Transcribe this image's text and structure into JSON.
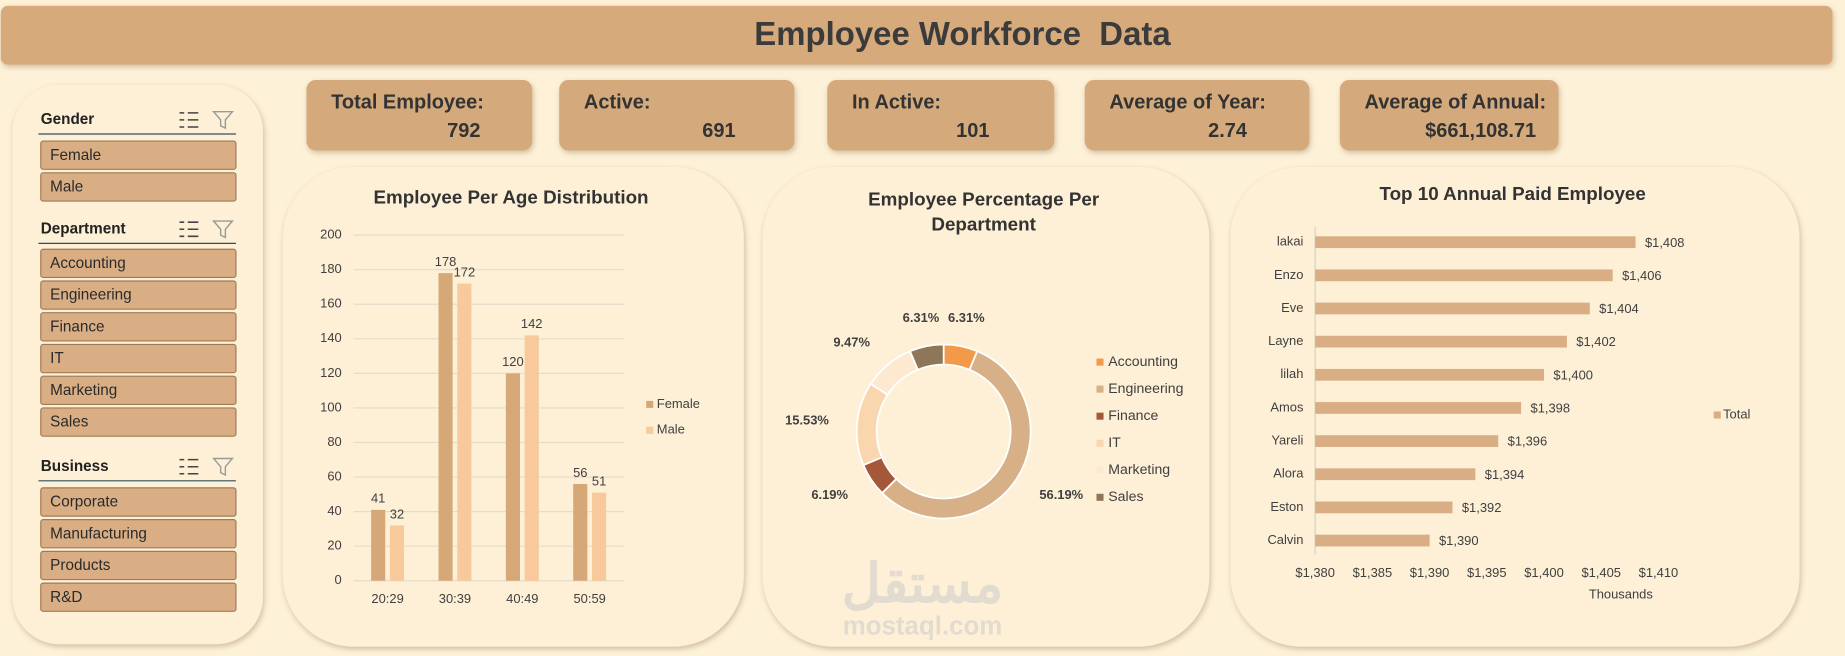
{
  "header": {
    "title": "Employee Workforce  Data"
  },
  "kpis": [
    {
      "label": "Total Employee:",
      "value": "792"
    },
    {
      "label": "Active:",
      "value": "691"
    },
    {
      "label": "In Active:",
      "value": "101"
    },
    {
      "label": "Average of Year:",
      "value": "2.74"
    },
    {
      "label": "Average of Annual:",
      "value": "$661,108.71"
    }
  ],
  "slicers": [
    {
      "title": "Gender",
      "items": [
        "Female",
        "Male"
      ]
    },
    {
      "title": "Department",
      "items": [
        "Accounting",
        "Engineering",
        "Finance",
        "IT",
        "Marketing",
        "Sales"
      ]
    },
    {
      "title": "Business",
      "items": [
        "Corporate",
        "Manufacturing",
        "Products",
        "R&D"
      ]
    }
  ],
  "chart_data": [
    {
      "type": "bar",
      "title": "Employee Per Age Distribution",
      "categories": [
        "20:29",
        "30:39",
        "40:49",
        "50:59"
      ],
      "series": [
        {
          "name": "Female",
          "color": "#d6a878",
          "values": [
            41,
            178,
            120,
            56
          ]
        },
        {
          "name": "Male",
          "color": "#f7c99b",
          "values": [
            32,
            172,
            142,
            51
          ]
        }
      ],
      "ylim": [
        0,
        200
      ],
      "yticks": [
        0,
        20,
        40,
        60,
        80,
        100,
        120,
        140,
        160,
        180,
        200
      ],
      "grid": true,
      "legend": "right"
    },
    {
      "type": "pie",
      "title": "Employee Percentage Per Department",
      "categories": [
        "Accounting",
        "Engineering",
        "Finance",
        "IT",
        "Marketing",
        "Sales"
      ],
      "values": [
        6.31,
        56.19,
        6.19,
        15.53,
        9.47,
        6.31
      ],
      "value_labels": [
        "6.31%",
        "56.19%",
        "6.19%",
        "15.53%",
        "9.47%",
        "6.31%"
      ],
      "colors": [
        "#f39a48",
        "#d8b088",
        "#a5573a",
        "#f9d6ae",
        "#fde9cf",
        "#8e7658"
      ],
      "legend": "right"
    },
    {
      "type": "hbar",
      "title": "Top 10 Annual Paid Employee",
      "xlabel": "Thousands",
      "categories": [
        "lakai",
        "Enzo",
        "Eve",
        "Layne",
        "lilah",
        "Amos",
        "Yareli",
        "Alora",
        "Eston",
        "Calvin"
      ],
      "series": [
        {
          "name": "Total",
          "color": "#d9ae84",
          "values": [
            1408,
            1406,
            1404,
            1402,
            1400,
            1398,
            1396,
            1394,
            1392,
            1390
          ],
          "value_labels": [
            "$1,408",
            "$1,406",
            "$1,404",
            "$1,402",
            "$1,400",
            "$1,398",
            "$1,396",
            "$1,394",
            "$1,392",
            "$1,390"
          ]
        }
      ],
      "xlim": [
        1380,
        1410
      ],
      "xticks": [
        {
          "value": 1380,
          "label": "$1,380"
        },
        {
          "value": 1385,
          "label": "$1,385"
        },
        {
          "value": 1390,
          "label": "$1,390"
        },
        {
          "value": 1395,
          "label": "$1,395"
        },
        {
          "value": 1400,
          "label": "$1,400"
        },
        {
          "value": 1405,
          "label": "$1,405"
        },
        {
          "value": 1410,
          "label": "$1,410"
        }
      ],
      "legend": "right"
    }
  ],
  "watermark": {
    "logo": "مستقل",
    "text": "mostaql.com"
  }
}
